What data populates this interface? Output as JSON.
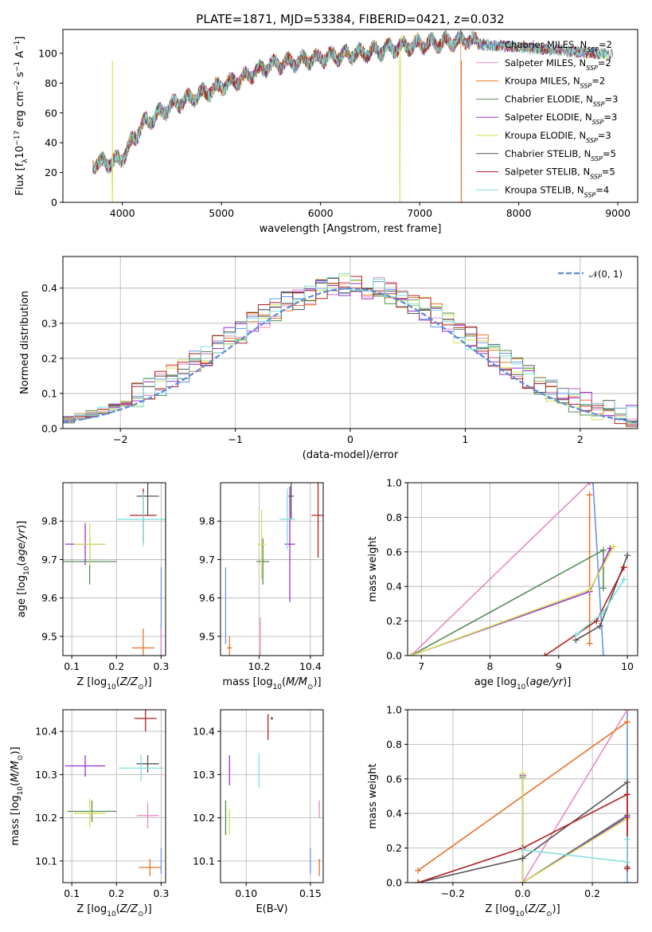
{
  "title": "PLATE=1871, MJD=53384, FIBERID=0421, z=0.032",
  "colors": {
    "Chabrier MILES": "#6495ed",
    "Salpeter MILES": "#e78ac3",
    "Kroupa MILES": "#e6742a",
    "Chabrier ELODIE": "#5a8a5a",
    "Salpeter ELODIE": "#9a32cd",
    "Kroupa ELODIE": "#d4e157",
    "Chabrier STELIB": "#555555",
    "Salpeter STELIB": "#b22222",
    "Kroupa STELIB": "#7fdfe0",
    "gauss": "#5b8bd9"
  },
  "chart_data": [
    {
      "id": "spectrum",
      "type": "line",
      "xlabel": "wavelength [Angstrom, rest frame]",
      "ylabel": "Flux [f_λ 10^-17 erg cm^-2 s^-1 A^-1]",
      "xlim": [
        3400,
        9200
      ],
      "ylim": [
        0,
        116
      ],
      "xticks": [
        "4000",
        "5000",
        "6000",
        "7000",
        "8000",
        "9000"
      ],
      "yticks": [
        "0",
        "20",
        "40",
        "60",
        "80",
        "100"
      ],
      "legend_position": "right",
      "legend": [
        {
          "name": "Chabrier MILES",
          "nssp": "2"
        },
        {
          "name": "Salpeter MILES",
          "nssp": "2"
        },
        {
          "name": "Kroupa MILES",
          "nssp": "2"
        },
        {
          "name": "Chabrier ELODIE",
          "nssp": "3"
        },
        {
          "name": "Salpeter ELODIE",
          "nssp": "3"
        },
        {
          "name": "Kroupa ELODIE",
          "nssp": "3"
        },
        {
          "name": "Chabrier STELIB",
          "nssp": "5"
        },
        {
          "name": "Salpeter STELIB",
          "nssp": "5"
        },
        {
          "name": "Kroupa STELIB",
          "nssp": "4"
        }
      ],
      "spectrum_shape": {
        "x": [
          3700,
          3900,
          4000,
          4200,
          4500,
          5000,
          5200,
          5500,
          6000,
          6500,
          7000,
          7500,
          7600
        ],
        "y": [
          26,
          27,
          30,
          52,
          65,
          78,
          83,
          92,
          97,
          101,
          106,
          109,
          107
        ]
      },
      "dropouts": [
        {
          "x": 3900,
          "to": 0
        },
        {
          "x": 6800,
          "to": 0
        },
        {
          "x": 7420,
          "to": 0
        }
      ]
    },
    {
      "id": "residuals",
      "type": "histogram",
      "xlabel": "(data-model)/error",
      "ylabel": "Normed distribution",
      "xlim": [
        -2.5,
        2.5
      ],
      "ylim": [
        0,
        0.49
      ],
      "xticks": [
        "−2",
        "−1",
        "0",
        "1",
        "2"
      ],
      "yticks": [
        "0.0",
        "0.1",
        "0.2",
        "0.3",
        "0.4"
      ],
      "grid": true,
      "legend_position": "top-right",
      "gauss_label": "𝒩(0, 1)",
      "bins": 50
    },
    {
      "id": "age_vs_Z",
      "type": "scatter",
      "xlabel": "Z [log10(Z/Z⊙)]",
      "ylabel": "age [log10(age/yr)]",
      "xlim": [
        0.08,
        0.31
      ],
      "ylim": [
        9.45,
        9.9
      ],
      "xticks": [
        "0.1",
        "0.2",
        "0.3"
      ],
      "yticks": [
        "9.5",
        "9.6",
        "9.7",
        "9.8"
      ],
      "grid": true,
      "points": [
        {
          "model": "Chabrier MILES",
          "x": 0.3,
          "y": 9.56,
          "xerr": 0.0,
          "yerr": 0.12
        },
        {
          "model": "Salpeter MILES",
          "x": 0.3,
          "y": 9.47,
          "xerr": 0.0,
          "yerr": 0.05
        },
        {
          "model": "Kroupa MILES",
          "x": 0.26,
          "y": 9.47,
          "xerr": 0.025,
          "yerr": 0.05
        },
        {
          "model": "Chabrier ELODIE",
          "x": 0.14,
          "y": 9.695,
          "xerr": 0.06,
          "yerr": 0.06
        },
        {
          "model": "Salpeter ELODIE",
          "x": 0.13,
          "y": 9.74,
          "xerr": 0.045,
          "yerr": 0.055
        },
        {
          "model": "Kroupa ELODIE",
          "x": 0.14,
          "y": 9.74,
          "xerr": 0.035,
          "yerr": 0.055
        },
        {
          "model": "Chabrier STELIB",
          "x": 0.27,
          "y": 9.865,
          "xerr": 0.025,
          "yerr": 0.05
        },
        {
          "model": "Salpeter STELIB",
          "x": 0.26,
          "y": 9.815,
          "xerr": 0.03,
          "yerr": 0.07
        },
        {
          "model": "Kroupa STELIB",
          "x": 0.26,
          "y": 9.805,
          "xerr": 0.06,
          "yerr": 0.07
        }
      ]
    },
    {
      "id": "age_vs_mass",
      "type": "scatter",
      "xlabel": "mass [log10(M/M⊙)]",
      "ylabel": "",
      "xlim": [
        10.05,
        10.45
      ],
      "ylim": [
        9.45,
        9.9
      ],
      "xticks": [
        "10.2",
        "10.4"
      ],
      "yticks": [
        "9.5",
        "9.6",
        "9.7",
        "9.8"
      ],
      "grid": true,
      "points": [
        {
          "model": "Chabrier MILES",
          "x": 10.07,
          "y": 9.58,
          "xerr": 0.0,
          "yerr": 0.1
        },
        {
          "model": "Salpeter MILES",
          "x": 10.205,
          "y": 9.47,
          "xerr": 0.0,
          "yerr": 0.08
        },
        {
          "model": "Kroupa MILES",
          "x": 10.085,
          "y": 9.47,
          "xerr": 0.01,
          "yerr": 0.03
        },
        {
          "model": "Chabrier ELODIE",
          "x": 10.215,
          "y": 9.695,
          "xerr": 0.025,
          "yerr": 0.06
        },
        {
          "model": "Salpeter ELODIE",
          "x": 10.32,
          "y": 9.74,
          "xerr": 0.02,
          "yerr": 0.15
        },
        {
          "model": "Kroupa ELODIE",
          "x": 10.21,
          "y": 9.74,
          "xerr": 0.015,
          "yerr": 0.09
        },
        {
          "model": "Chabrier STELIB",
          "x": 10.325,
          "y": 9.865,
          "xerr": 0.01,
          "yerr": 0.06
        },
        {
          "model": "Salpeter STELIB",
          "x": 10.43,
          "y": 9.815,
          "xerr": 0.025,
          "yerr": 0.11
        },
        {
          "model": "Kroupa STELIB",
          "x": 10.31,
          "y": 9.805,
          "xerr": 0.03,
          "yerr": 0.08
        }
      ]
    },
    {
      "id": "mw_vs_age",
      "type": "line",
      "xlabel": "age [log10(age/yr)]",
      "ylabel": "mass weight",
      "xlim": [
        6.8,
        10.15
      ],
      "ylim": [
        0,
        1
      ],
      "xticks": [
        "7",
        "8",
        "9",
        "10"
      ],
      "yticks": [
        "0.0",
        "0.2",
        "0.4",
        "0.6",
        "0.8",
        "1.0"
      ],
      "grid": true,
      "series": [
        {
          "model": "Chabrier MILES",
          "x": [
            9.5,
            9.65
          ],
          "y": [
            1.0,
            0.0
          ]
        },
        {
          "model": "Salpeter MILES",
          "x": [
            6.85,
            9.45
          ],
          "y": [
            0.0,
            1.0
          ]
        },
        {
          "model": "Kroupa MILES",
          "x": [
            9.45,
            9.45
          ],
          "y": [
            0.93,
            0.07
          ]
        },
        {
          "model": "Chabrier ELODIE",
          "x": [
            6.85,
            9.65,
            9.65
          ],
          "y": [
            0.0,
            0.61,
            0.39
          ]
        },
        {
          "model": "Salpeter ELODIE",
          "x": [
            6.85,
            9.45,
            9.75
          ],
          "y": [
            0.0,
            0.37,
            0.62
          ]
        },
        {
          "model": "Kroupa ELODIE",
          "x": [
            6.85,
            9.45,
            9.8
          ],
          "y": [
            0.0,
            0.38,
            0.63
          ]
        },
        {
          "model": "Chabrier STELIB",
          "x": [
            9.25,
            9.6,
            10.0
          ],
          "y": [
            0.09,
            0.17,
            0.58
          ]
        },
        {
          "model": "Salpeter STELIB",
          "x": [
            8.8,
            9.55,
            9.95
          ],
          "y": [
            0.0,
            0.2,
            0.51
          ]
        },
        {
          "model": "Kroupa STELIB",
          "x": [
            9.25,
            9.65,
            9.95
          ],
          "y": [
            0.12,
            0.25,
            0.44
          ]
        }
      ]
    },
    {
      "id": "mass_vs_Z",
      "type": "scatter",
      "xlabel": "Z [log10(Z/Z⊙)]",
      "ylabel": "mass [log10(M/M⊙)]",
      "xlim": [
        0.08,
        0.31
      ],
      "ylim": [
        10.05,
        10.45
      ],
      "xticks": [
        "0.1",
        "0.2",
        "0.3"
      ],
      "yticks": [
        "10.1",
        "10.2",
        "10.3",
        "10.4"
      ],
      "grid": true,
      "points": [
        {
          "model": "Chabrier MILES",
          "x": 0.3,
          "y": 10.1,
          "xerr": 0.0,
          "yerr": 0.03
        },
        {
          "model": "Salpeter MILES",
          "x": 0.27,
          "y": 10.205,
          "xerr": 0.025,
          "yerr": 0.03
        },
        {
          "model": "Kroupa MILES",
          "x": 0.275,
          "y": 10.085,
          "xerr": 0.025,
          "yerr": 0.02
        },
        {
          "model": "Chabrier ELODIE",
          "x": 0.145,
          "y": 10.215,
          "xerr": 0.055,
          "yerr": 0.025
        },
        {
          "model": "Salpeter ELODIE",
          "x": 0.13,
          "y": 10.32,
          "xerr": 0.045,
          "yerr": 0.025
        },
        {
          "model": "Kroupa ELODIE",
          "x": 0.14,
          "y": 10.21,
          "xerr": 0.035,
          "yerr": 0.035
        },
        {
          "model": "Chabrier STELIB",
          "x": 0.27,
          "y": 10.325,
          "xerr": 0.025,
          "yerr": 0.02
        },
        {
          "model": "Salpeter STELIB",
          "x": 0.265,
          "y": 10.43,
          "xerr": 0.025,
          "yerr": 0.03
        },
        {
          "model": "Kroupa STELIB",
          "x": 0.255,
          "y": 10.315,
          "xerr": 0.05,
          "yerr": 0.03
        }
      ]
    },
    {
      "id": "mass_vs_ebv",
      "type": "scatter",
      "xlabel": "E(B-V)",
      "ylabel": "",
      "xlim": [
        0.08,
        0.16
      ],
      "ylim": [
        10.05,
        10.45
      ],
      "xticks": [
        "0.10",
        "0.15"
      ],
      "yticks": [
        "10.1",
        "10.2",
        "10.3",
        "10.4"
      ],
      "grid": true,
      "points": [
        {
          "model": "Chabrier MILES",
          "x": 0.15,
          "y": 10.1,
          "xerr": 0.0,
          "yerr": 0.03
        },
        {
          "model": "Salpeter MILES",
          "x": 0.157,
          "y": 10.22,
          "xerr": 0.0,
          "yerr": 0.02
        },
        {
          "model": "Kroupa MILES",
          "x": 0.157,
          "y": 10.085,
          "xerr": 0.0,
          "yerr": 0.02
        },
        {
          "model": "Chabrier ELODIE",
          "x": 0.084,
          "y": 10.2,
          "xerr": 0.0,
          "yerr": 0.04
        },
        {
          "model": "Salpeter ELODIE",
          "x": 0.087,
          "y": 10.31,
          "xerr": 0.0,
          "yerr": 0.035
        },
        {
          "model": "Kroupa ELODIE",
          "x": 0.087,
          "y": 10.19,
          "xerr": 0.0,
          "yerr": 0.03
        },
        {
          "model": "Chabrier STELIB",
          "x": 0.12,
          "y": 10.43,
          "xerr": 0.0,
          "yerr": 0.0
        },
        {
          "model": "Salpeter STELIB",
          "x": 0.117,
          "y": 10.41,
          "xerr": 0.0,
          "yerr": 0.03
        },
        {
          "model": "Kroupa STELIB",
          "x": 0.11,
          "y": 10.31,
          "xerr": 0.0,
          "yerr": 0.04
        }
      ]
    },
    {
      "id": "mw_vs_Z",
      "type": "line",
      "xlabel": "Z [log10(Z/Z⊙)]",
      "ylabel": "mass weight",
      "xlim": [
        -0.33,
        0.33
      ],
      "ylim": [
        0,
        1
      ],
      "xticks": [
        "−0.2",
        "0.0",
        "0.2"
      ],
      "yticks": [
        "0.0",
        "0.2",
        "0.4",
        "0.6",
        "0.8",
        "1.0"
      ],
      "grid": true,
      "series": [
        {
          "model": "Chabrier MILES",
          "x": [
            0.3,
            0.3
          ],
          "y": [
            1.0,
            0.0
          ]
        },
        {
          "model": "Salpeter MILES",
          "x": [
            0.0,
            0.3
          ],
          "y": [
            0.0,
            1.0
          ]
        },
        {
          "model": "Kroupa MILES",
          "x": [
            -0.3,
            0.3
          ],
          "y": [
            0.07,
            0.93
          ]
        },
        {
          "model": "Chabrier ELODIE",
          "x": [
            0.0,
            0.0,
            0.3
          ],
          "y": [
            0.61,
            0.0,
            0.39
          ]
        },
        {
          "model": "Salpeter ELODIE",
          "x": [
            0.0,
            0.0,
            0.3
          ],
          "y": [
            0.62,
            0.0,
            0.38
          ]
        },
        {
          "model": "Kroupa ELODIE",
          "x": [
            0.0,
            0.0,
            0.3
          ],
          "y": [
            0.63,
            0.0,
            0.37
          ]
        },
        {
          "model": "Chabrier STELIB",
          "x": [
            -0.3,
            0.0,
            0.3,
            0.3
          ],
          "y": [
            0.0,
            0.14,
            0.58,
            0.09
          ]
        },
        {
          "model": "Salpeter STELIB",
          "x": [
            -0.3,
            0.0,
            0.3,
            0.3
          ],
          "y": [
            0.0,
            0.2,
            0.51,
            0.08
          ]
        },
        {
          "model": "Kroupa STELIB",
          "x": [
            0.0,
            0.3,
            0.3
          ],
          "y": [
            0.19,
            0.12,
            0.25
          ]
        }
      ]
    }
  ]
}
